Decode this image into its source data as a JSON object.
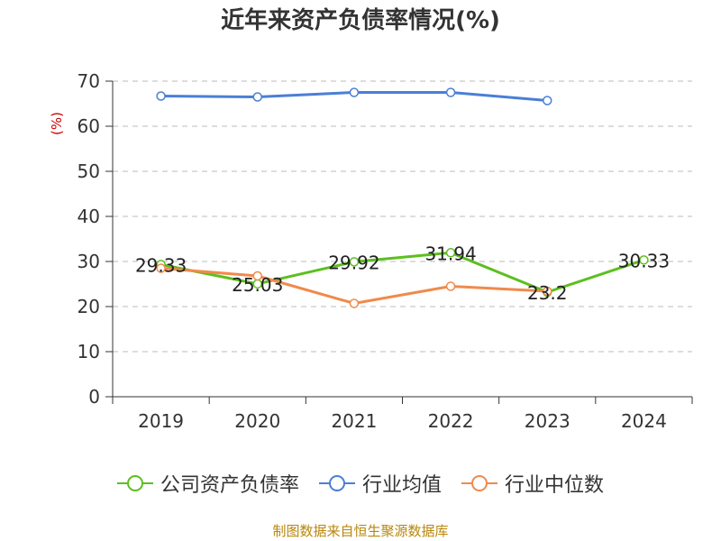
{
  "title": "近年来资产负债率情况(%)",
  "unit_label": "(%)",
  "source": "制图数据来自恒生聚源数据库",
  "legend": [
    "公司资产负债率",
    "行业均值",
    "行业中位数"
  ],
  "colors": {
    "company": "#5cbf1f",
    "industry_avg": "#4a7fd6",
    "industry_median": "#f08a4b",
    "grid": "#bbbbbb",
    "axis": "#333333"
  },
  "chart_data": {
    "type": "line",
    "title": "近年来资产负债率情况(%)",
    "ylabel": "(%)",
    "categories": [
      "2019",
      "2020",
      "2021",
      "2022",
      "2023",
      "2024"
    ],
    "ylim": [
      0,
      70
    ],
    "yticks": [
      "0",
      "10",
      "20",
      "30",
      "40",
      "50",
      "60",
      "70"
    ],
    "grid": true,
    "legend_position": "bottom",
    "series": [
      {
        "name": "公司资产负债率",
        "values": [
          29.33,
          25.03,
          29.92,
          31.94,
          23.2,
          30.33
        ],
        "labels": [
          "29.33",
          "25.03",
          "29.92",
          "31.94",
          "23.2",
          "30.33"
        ]
      },
      {
        "name": "行业均值",
        "values": [
          66.7,
          66.5,
          67.5,
          67.5,
          65.7,
          null
        ]
      },
      {
        "name": "行业中位数",
        "values": [
          28.5,
          26.8,
          20.7,
          24.5,
          23.4,
          null
        ]
      }
    ]
  }
}
